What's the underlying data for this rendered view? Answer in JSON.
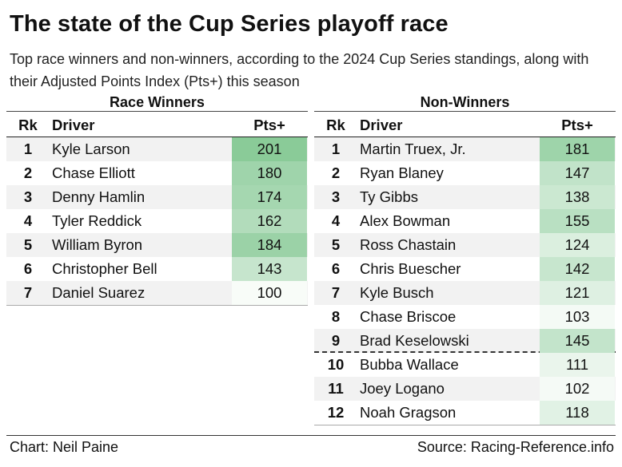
{
  "title": "The state of the Cup Series playoff race",
  "subtitle": "Top race winners and non-winners, according to the 2024 Cup Series standings, along with their Adjusted Points Index (Pts+) this season",
  "columns": {
    "rank": "Rk",
    "driver": "Driver",
    "pts": "Pts+"
  },
  "colors": {
    "heat_low": "#ffffff",
    "heat_high": "#86c995",
    "alt_row": "#f2f2f2"
  },
  "footer": {
    "credit": "Chart: Neil Paine",
    "source": "Source: Racing-Reference.info"
  },
  "chart_data": [
    {
      "type": "table",
      "title": "Race Winners",
      "columns": [
        "Rk",
        "Driver",
        "Pts+"
      ],
      "rows": [
        {
          "rank": "1",
          "driver": "Kyle Larson",
          "pts": 201
        },
        {
          "rank": "2",
          "driver": "Chase Elliott",
          "pts": 180
        },
        {
          "rank": "3",
          "driver": "Denny Hamlin",
          "pts": 174
        },
        {
          "rank": "4",
          "driver": "Tyler Reddick",
          "pts": 162
        },
        {
          "rank": "5",
          "driver": "William Byron",
          "pts": 184
        },
        {
          "rank": "6",
          "driver": "Christopher Bell",
          "pts": 143
        },
        {
          "rank": "7",
          "driver": "Daniel Suarez",
          "pts": 100
        }
      ]
    },
    {
      "type": "table",
      "title": "Non-Winners",
      "columns": [
        "Rk",
        "Driver",
        "Pts+"
      ],
      "cutoff_after_rank": 9,
      "rows": [
        {
          "rank": "1",
          "driver": "Martin Truex, Jr.",
          "pts": 181
        },
        {
          "rank": "2",
          "driver": "Ryan Blaney",
          "pts": 147
        },
        {
          "rank": "3",
          "driver": "Ty Gibbs",
          "pts": 138
        },
        {
          "rank": "4",
          "driver": "Alex Bowman",
          "pts": 155
        },
        {
          "rank": "5",
          "driver": "Ross Chastain",
          "pts": 124
        },
        {
          "rank": "6",
          "driver": "Chris Buescher",
          "pts": 142
        },
        {
          "rank": "7",
          "driver": "Kyle Busch",
          "pts": 121
        },
        {
          "rank": "8",
          "driver": "Chase Briscoe",
          "pts": 103
        },
        {
          "rank": "9",
          "driver": "Brad Keselowski",
          "pts": 145
        },
        {
          "rank": "10",
          "driver": "Bubba Wallace",
          "pts": 111
        },
        {
          "rank": "11",
          "driver": "Joey Logano",
          "pts": 102
        },
        {
          "rank": "12",
          "driver": "Noah Gragson",
          "pts": 118
        }
      ]
    }
  ]
}
